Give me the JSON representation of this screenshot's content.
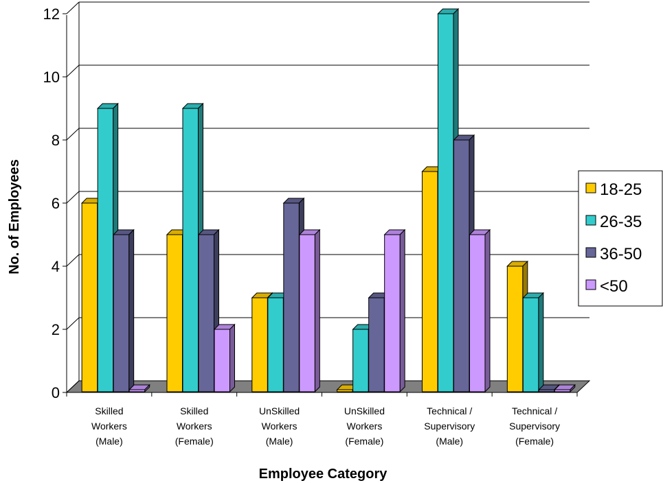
{
  "chart_data": {
    "type": "bar",
    "xlabel": "Employee Category",
    "ylabel": "No. of Employees",
    "ylim": [
      0,
      12
    ],
    "yticks": [
      "0",
      "2",
      "4",
      "6",
      "8",
      "10",
      "12"
    ],
    "grid": true,
    "legend_position": "right",
    "categories": [
      [
        "Skilled",
        "Workers",
        "(Male)"
      ],
      [
        "Skilled",
        "Workers",
        "(Female)"
      ],
      [
        "UnSkilled",
        "Workers",
        "(Male)"
      ],
      [
        "UnSkilled",
        "Workers",
        "(Female)"
      ],
      [
        "Technical /",
        "Supervisory",
        "(Male)"
      ],
      [
        "Technical /",
        "Supervisory",
        "(Female)"
      ]
    ],
    "series": [
      {
        "name": "18-25",
        "color": "#FFCC00",
        "values": [
          6,
          5,
          3,
          0,
          7,
          4
        ]
      },
      {
        "name": "26-35",
        "color": "#33CCCC",
        "values": [
          9,
          9,
          3,
          2,
          12,
          3
        ]
      },
      {
        "name": "36-50",
        "color": "#666699",
        "values": [
          5,
          5,
          6,
          3,
          8,
          0
        ]
      },
      {
        "name": "<50",
        "color": "#CC99FF",
        "values": [
          0,
          2,
          5,
          5,
          5,
          0
        ]
      }
    ]
  }
}
